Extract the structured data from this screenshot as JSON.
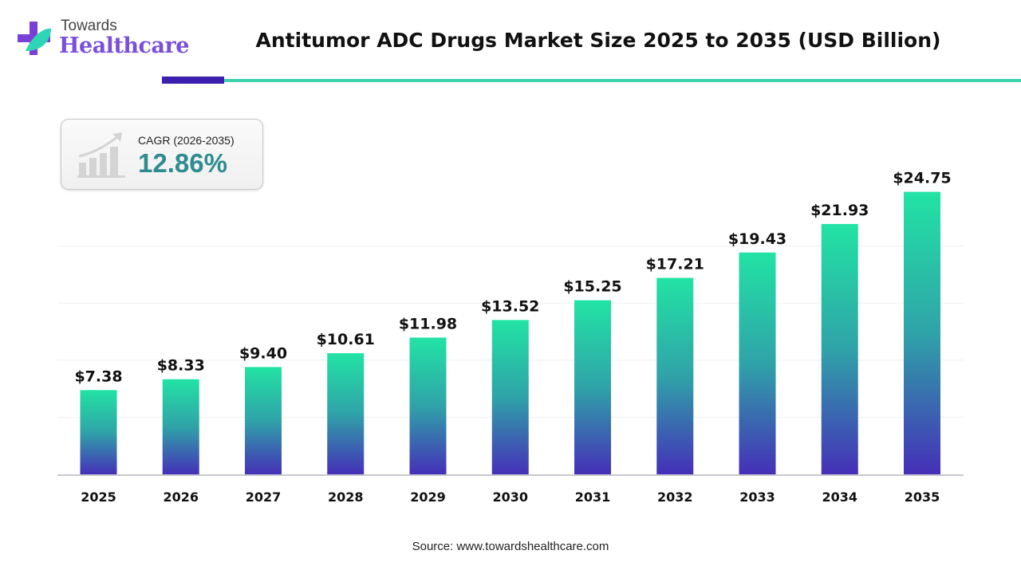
{
  "logo": {
    "line1": "Towards",
    "line2": "Healthcare"
  },
  "header": {
    "title": "Antitumor ADC Drugs Market Size 2025 to 2035 (USD Billion)"
  },
  "cagr": {
    "label": "CAGR (2026-2035)",
    "value": "12.86%",
    "icon": "growth-chart-icon"
  },
  "colors": {
    "bar_top": "#22e3a4",
    "bar_bottom": "#4530b8",
    "accent_dark": "#3b1fae",
    "accent_teal": "#3ed3a8",
    "cagr_text": "#2e8b8f"
  },
  "chart_data": {
    "type": "bar",
    "title": "Antitumor ADC Drugs Market Size 2025 to 2035 (USD Billion)",
    "xlabel": "",
    "ylabel": "",
    "categories": [
      "2025",
      "2026",
      "2027",
      "2028",
      "2029",
      "2030",
      "2031",
      "2032",
      "2033",
      "2034",
      "2035"
    ],
    "values": [
      7.38,
      8.33,
      9.4,
      10.61,
      11.98,
      13.52,
      15.25,
      17.21,
      19.43,
      21.93,
      24.75
    ],
    "data_labels": [
      "$7.38",
      "$8.33",
      "$9.40",
      "$10.61",
      "$11.98",
      "$13.52",
      "$15.25",
      "$17.21",
      "$19.43",
      "$21.93",
      "$24.75"
    ],
    "ylim": [
      0,
      25
    ],
    "grid": true,
    "legend": "none"
  },
  "footer": {
    "source": "Source: www.towardshealthcare.com"
  }
}
